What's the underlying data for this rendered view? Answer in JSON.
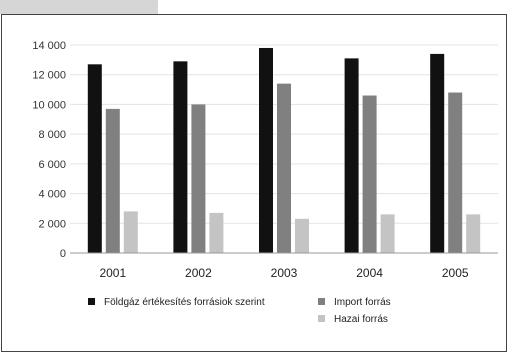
{
  "chart_data": {
    "type": "bar",
    "categories": [
      "2001",
      "2002",
      "2003",
      "2004",
      "2005"
    ],
    "series": [
      {
        "name": "Földgáz értékesítés forrásiok szerint",
        "color": "#111111",
        "values": [
          12700,
          12900,
          13800,
          13100,
          13400
        ]
      },
      {
        "name": "Import forrás",
        "color": "#808080",
        "values": [
          9700,
          10000,
          11400,
          10600,
          10800
        ]
      },
      {
        "name": "Hazai forrás",
        "color": "#c4c4c4",
        "values": [
          2800,
          2700,
          2300,
          2600,
          2600
        ]
      }
    ],
    "ylim": [
      0,
      14000
    ],
    "yticks": [
      "14 000",
      "12 000",
      "10 000",
      "8 000",
      "6 000",
      "4 000",
      "2 000",
      "0"
    ],
    "ytick_values": [
      14000,
      12000,
      10000,
      8000,
      6000,
      4000,
      2000,
      0
    ],
    "grid": true,
    "legend_position": "bottom",
    "title": "",
    "xlabel": "",
    "ylabel": ""
  }
}
